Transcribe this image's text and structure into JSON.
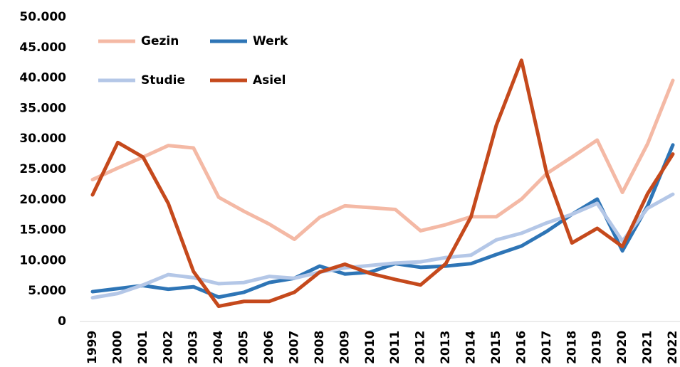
{
  "chart_data": {
    "type": "line",
    "categories": [
      "1999",
      "2000",
      "2001",
      "2002",
      "2003",
      "2004",
      "2005",
      "2006",
      "2007",
      "2008",
      "2009",
      "2010",
      "2011",
      "2012",
      "2013",
      "2014",
      "2015",
      "2016",
      "2017",
      "2018",
      "2019",
      "2020",
      "2021",
      "2022"
    ],
    "series": [
      {
        "name": "Gezin",
        "color": "#f4b9a5",
        "values": [
          23300,
          25200,
          27000,
          28900,
          28500,
          20400,
          18100,
          16000,
          13500,
          17100,
          19000,
          18700,
          18400,
          14900,
          15900,
          17200,
          17200,
          20100,
          24300,
          27000,
          29800,
          21200,
          29200,
          39600
        ]
      },
      {
        "name": "Werk",
        "color": "#2e75b6",
        "values": [
          4900,
          5400,
          5900,
          5300,
          5700,
          4000,
          4800,
          6400,
          7100,
          9100,
          7800,
          8100,
          9500,
          8900,
          9100,
          9500,
          11000,
          12400,
          14800,
          17600,
          20100,
          11600,
          19000,
          29000
        ]
      },
      {
        "name": "Studie",
        "color": "#b4c7e7",
        "values": [
          3900,
          4600,
          6000,
          7700,
          7200,
          6200,
          6400,
          7400,
          7100,
          8100,
          8800,
          9200,
          9600,
          9800,
          10500,
          10900,
          13400,
          14500,
          16200,
          17600,
          19400,
          13200,
          18600,
          20900
        ]
      },
      {
        "name": "Asiel",
        "color": "#c5491c",
        "values": [
          20800,
          29400,
          27000,
          19400,
          8200,
          2500,
          3300,
          3300,
          4800,
          8100,
          9400,
          7900,
          6900,
          6000,
          9500,
          17200,
          32200,
          42900,
          24300,
          12900,
          15300,
          12300,
          21000,
          27500
        ]
      }
    ],
    "ylim": [
      0,
      50000
    ],
    "yticks": [
      0,
      {
        "value": 5000,
        "label": "5.000"
      },
      {
        "value": 10000,
        "label": "10.000"
      },
      {
        "value": 15000,
        "label": "15.000"
      },
      {
        "value": 20000,
        "label": "20.000"
      },
      {
        "value": 25000,
        "label": "25.000"
      },
      {
        "value": 30000,
        "label": "30.000"
      },
      {
        "value": 35000,
        "label": "35.000"
      },
      {
        "value": 40000,
        "label": "40.000"
      },
      {
        "value": 45000,
        "label": "45.000"
      },
      {
        "value": 50000,
        "label": "50.000"
      }
    ],
    "grid": false
  }
}
